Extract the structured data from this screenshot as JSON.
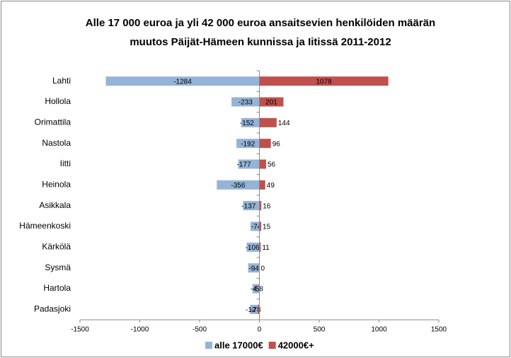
{
  "chart_data": {
    "type": "bar",
    "orientation": "horizontal",
    "title": [
      "Alle 17 000 euroa ja yli 42 000 euroa ansaitsevien henkilöiden määrän",
      "muutos Päijät-Hämeen kunnissa ja Iitissä 2011-2012"
    ],
    "categories": [
      "Lahti",
      "Hollola",
      "Orimattila",
      "Nastola",
      "Iitti",
      "Heinola",
      "Asikkala",
      "Hämeenkoski",
      "Kärkölä",
      "Sysmä",
      "Hartola",
      "Padasjoki"
    ],
    "series": [
      {
        "name": "alle 17000€",
        "color": "#95b3d7",
        "values": [
          -1284,
          -233,
          -152,
          -192,
          -177,
          -356,
          -137,
          -74,
          -106,
          -94,
          -58,
          -78
        ]
      },
      {
        "name": "42000€+",
        "color": "#c0504d",
        "values": [
          1078,
          201,
          144,
          96,
          56,
          49,
          16,
          15,
          11,
          0,
          -4,
          -12
        ]
      }
    ],
    "xlim": [
      -1500,
      1500
    ],
    "xticks": [
      -1500,
      -1000,
      -500,
      0,
      500,
      1000,
      1500
    ],
    "legend": "bottom"
  }
}
